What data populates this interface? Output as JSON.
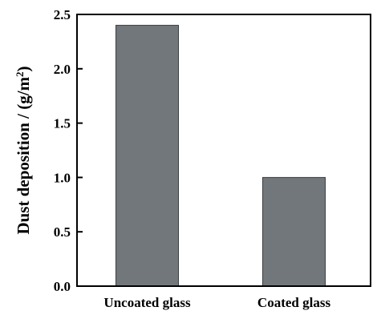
{
  "chart_data": {
    "type": "bar",
    "title": "",
    "xlabel": "",
    "ylabel": "Dust deposition / (g/m",
    "ylabel_superscript": "2",
    "ylabel_suffix": ")",
    "categories": [
      "Uncoated glass",
      "Coated glass"
    ],
    "values": [
      2.4,
      1.0
    ],
    "ylim": [
      0,
      2.5
    ],
    "yticks": [
      "0.0",
      "0.5",
      "1.0",
      "1.5",
      "2.0",
      "2.5"
    ],
    "grid": false,
    "legend": "none",
    "bar_color": "#72777b",
    "bar_edge_color": "#3a3d40"
  }
}
